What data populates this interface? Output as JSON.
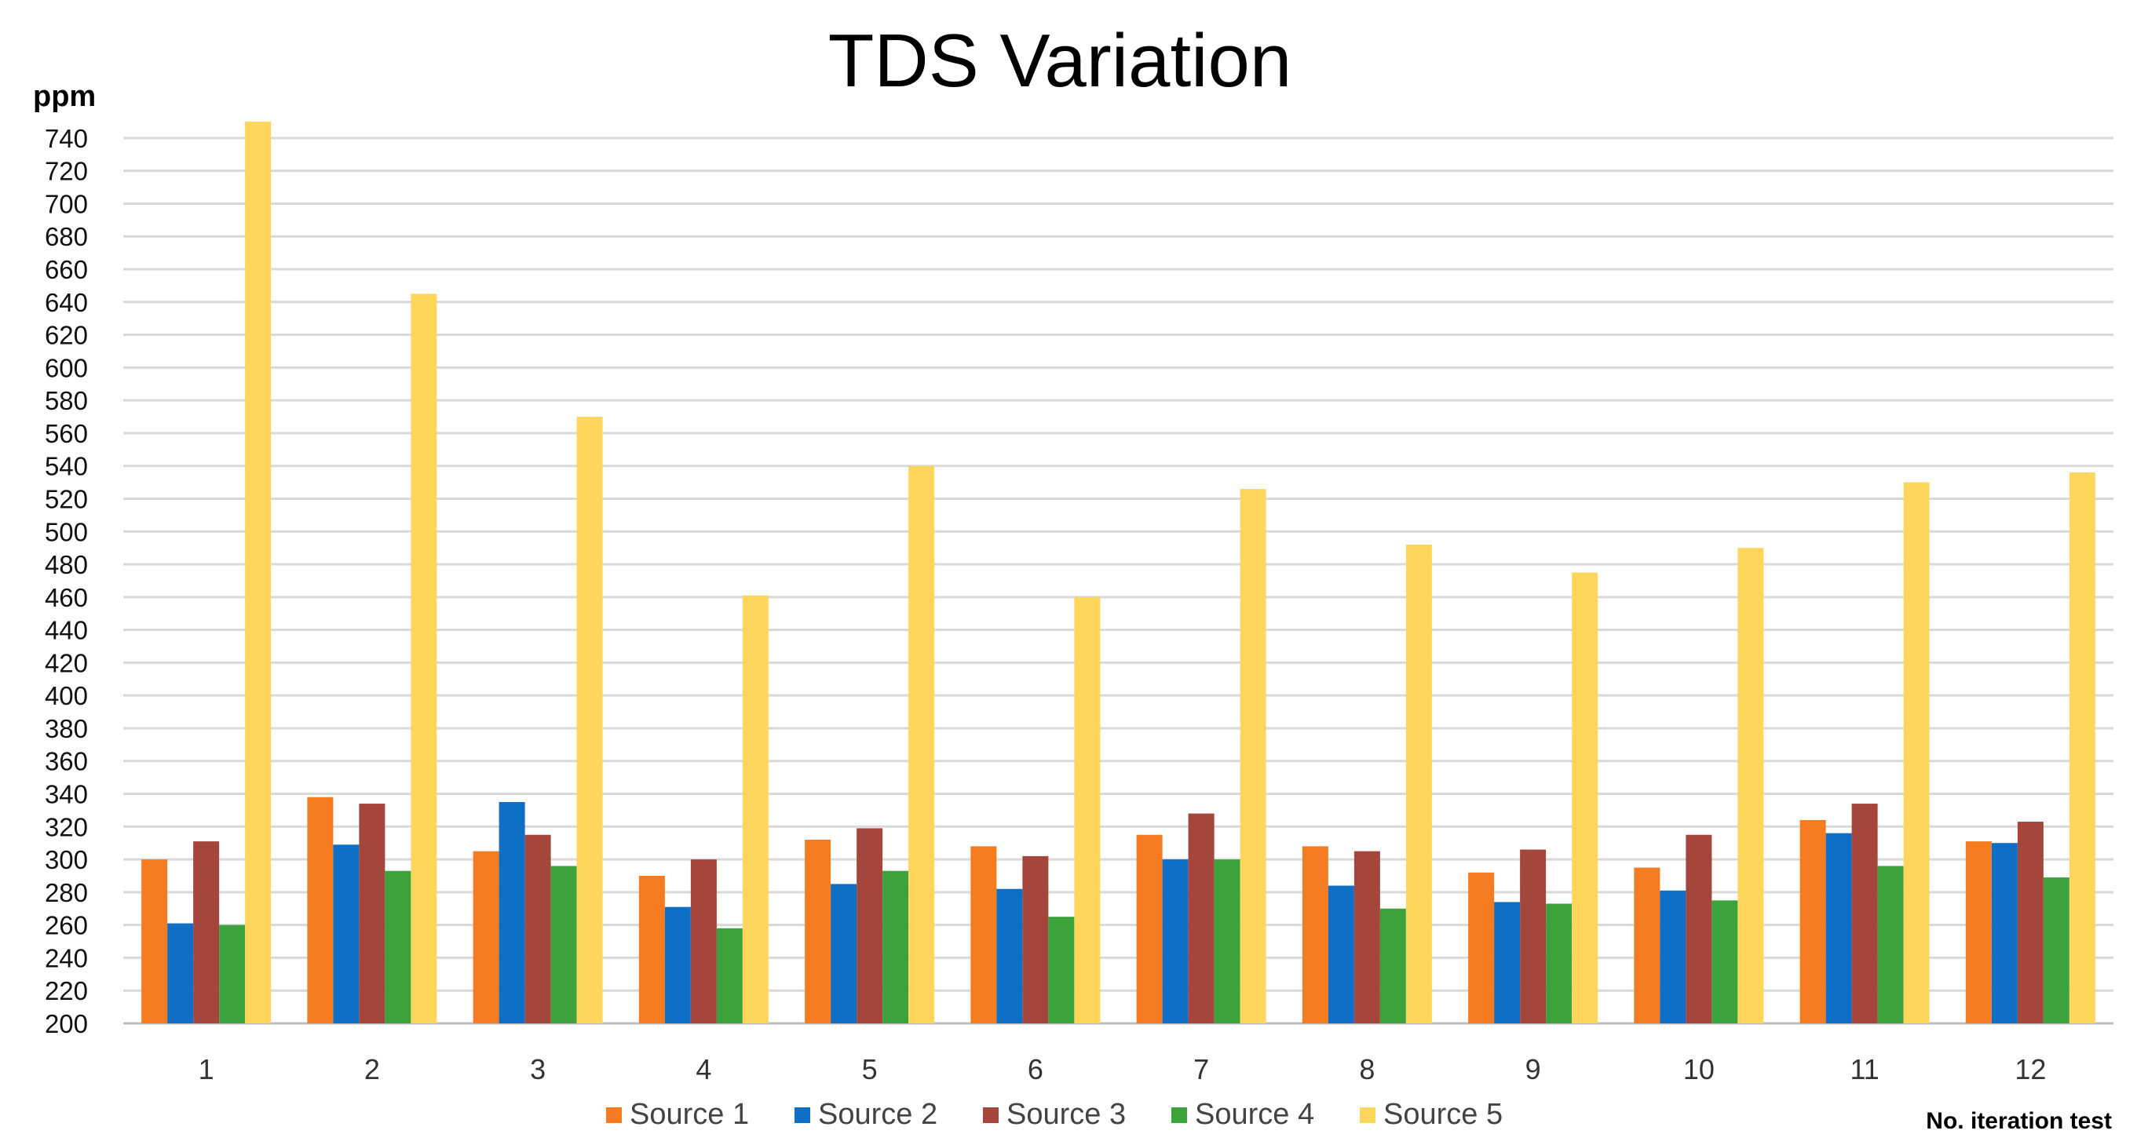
{
  "chart_data": {
    "type": "bar",
    "title": "TDS Variation",
    "ylabel": "ppm",
    "xlabel": "No. iteration test",
    "ylim": [
      200,
      750
    ],
    "yticks": [
      200,
      220,
      240,
      260,
      280,
      300,
      320,
      340,
      360,
      380,
      400,
      420,
      440,
      460,
      480,
      500,
      520,
      540,
      560,
      580,
      600,
      620,
      640,
      660,
      680,
      700,
      720,
      740
    ],
    "grid": true,
    "legend": "bottom",
    "categories": [
      "1",
      "2",
      "3",
      "4",
      "5",
      "6",
      "7",
      "8",
      "9",
      "10",
      "11",
      "12"
    ],
    "series": [
      {
        "name": "Source 1",
        "color": "#f47b20",
        "values": [
          300,
          338,
          305,
          290,
          312,
          308,
          315,
          308,
          292,
          295,
          324,
          311
        ]
      },
      {
        "name": "Source 2",
        "color": "#0f6fc6",
        "values": [
          261,
          309,
          335,
          271,
          285,
          282,
          300,
          284,
          274,
          281,
          316,
          310
        ]
      },
      {
        "name": "Source 3",
        "color": "#a5463c",
        "values": [
          311,
          334,
          315,
          300,
          319,
          302,
          328,
          305,
          306,
          315,
          334,
          323
        ]
      },
      {
        "name": "Source 4",
        "color": "#3ca33c",
        "values": [
          260,
          293,
          296,
          258,
          293,
          265,
          300,
          270,
          273,
          275,
          296,
          289
        ]
      },
      {
        "name": "Source 5",
        "color": "#ffd65c",
        "values": [
          750,
          645,
          570,
          461,
          540,
          460,
          526,
          492,
          475,
          490,
          530,
          536
        ]
      }
    ]
  }
}
